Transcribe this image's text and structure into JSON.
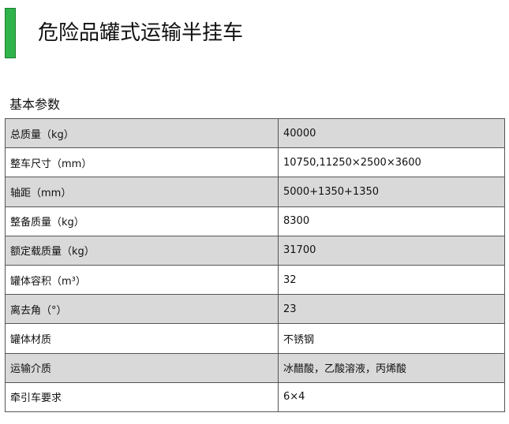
{
  "header": {
    "title": "危险品罐式运输半挂车"
  },
  "section": {
    "title": "基本参数"
  },
  "table": {
    "rows": [
      [
        "总质量（kg）",
        "40000"
      ],
      [
        "整车尺寸（mm）",
        "10750,11250×2500×3600"
      ],
      [
        "轴距（mm）",
        "5000+1350+1350"
      ],
      [
        "整备质量（kg）",
        "8300"
      ],
      [
        "额定载质量（kg）",
        "31700"
      ],
      [
        "罐体容积（m³）",
        "32"
      ],
      [
        "离去角（°）",
        "23"
      ],
      [
        "罐体材质",
        "不锈钢"
      ],
      [
        "运输介质",
        "冰醋酸，乙酸溶液，丙烯酸"
      ],
      [
        "牵引车要求",
        "6×4"
      ]
    ]
  }
}
